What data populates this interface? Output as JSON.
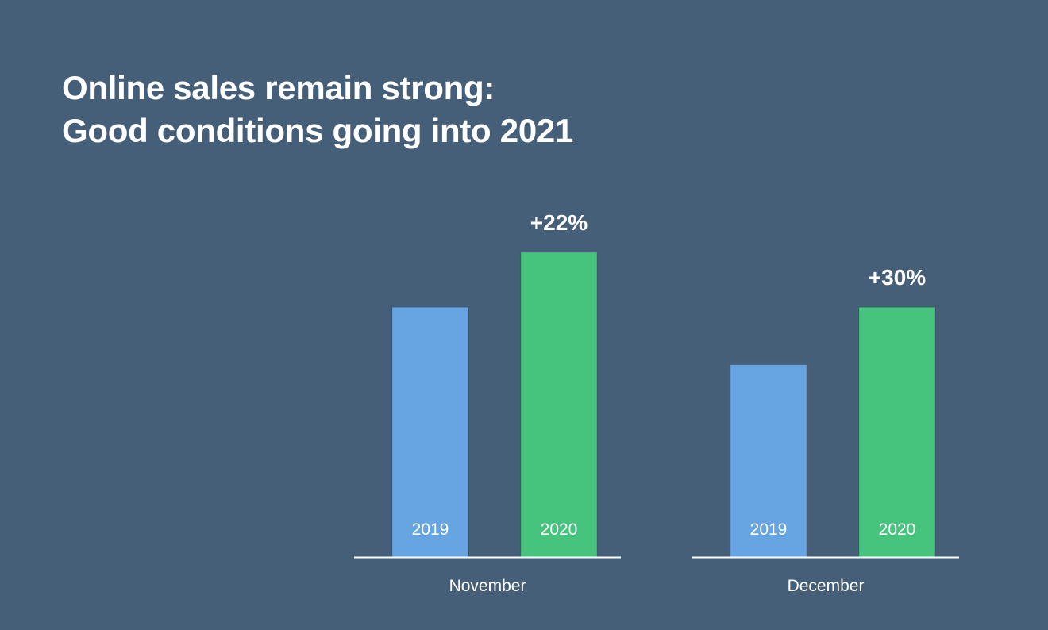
{
  "title_lines": [
    "Online sales remain strong:",
    "Good conditions going into 2021"
  ],
  "colors": {
    "background": "#465f79",
    "series_2019": "#66a5e1",
    "series_2020": "#46c37c",
    "axis": "#ffffff",
    "text": "#ffffff"
  },
  "chart_data": {
    "type": "bar",
    "title": "Online sales remain strong: Good conditions going into 2021",
    "categories": [
      "November",
      "December"
    ],
    "series": [
      {
        "name": "2019",
        "values": [
          100,
          77
        ]
      },
      {
        "name": "2020",
        "values": [
          122,
          100
        ]
      }
    ],
    "change_labels": [
      "+22%",
      "+30%"
    ],
    "ylim": [
      0,
      134
    ],
    "grid": false,
    "legend": "none"
  }
}
